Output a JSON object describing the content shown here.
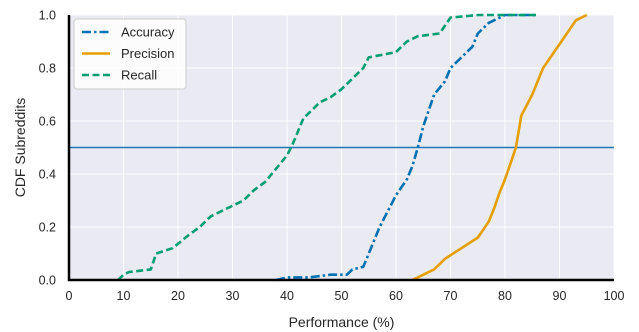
{
  "chart_data": {
    "type": "line",
    "title": "",
    "xlabel": "Performance (%)",
    "ylabel": "CDF Subreddits",
    "xlim": [
      0,
      100
    ],
    "ylim": [
      0,
      1
    ],
    "xticks": [
      "0",
      "10",
      "20",
      "30",
      "40",
      "50",
      "60",
      "70",
      "80",
      "90",
      "100"
    ],
    "yticks": [
      "0.0",
      "0.2",
      "0.4",
      "0.6",
      "0.8",
      "1.0"
    ],
    "grid": true,
    "background": "#eaeaf2",
    "legend_position": "top-left",
    "reference_line": {
      "y": 0.5,
      "color": "#1f77b4"
    },
    "series": [
      {
        "name": "Accuracy",
        "color": "#0072b2",
        "style": "dashdot",
        "points": [
          [
            38,
            0.0
          ],
          [
            40,
            0.01
          ],
          [
            44,
            0.01
          ],
          [
            48,
            0.02
          ],
          [
            51,
            0.02
          ],
          [
            52,
            0.04
          ],
          [
            54,
            0.05
          ],
          [
            55,
            0.1
          ],
          [
            56,
            0.15
          ],
          [
            57,
            0.2
          ],
          [
            58,
            0.24
          ],
          [
            59,
            0.28
          ],
          [
            60,
            0.32
          ],
          [
            61,
            0.35
          ],
          [
            62,
            0.38
          ],
          [
            63,
            0.43
          ],
          [
            64,
            0.5
          ],
          [
            65,
            0.58
          ],
          [
            66,
            0.64
          ],
          [
            67,
            0.7
          ],
          [
            69,
            0.75
          ],
          [
            70,
            0.8
          ],
          [
            72,
            0.84
          ],
          [
            74,
            0.88
          ],
          [
            75,
            0.93
          ],
          [
            77,
            0.97
          ],
          [
            80,
            1.0
          ],
          [
            86,
            1.0
          ]
        ]
      },
      {
        "name": "Precision",
        "color": "#e69f00",
        "style": "solid",
        "points": [
          [
            63,
            0.0
          ],
          [
            65,
            0.02
          ],
          [
            67,
            0.04
          ],
          [
            69,
            0.08
          ],
          [
            72,
            0.12
          ],
          [
            75,
            0.16
          ],
          [
            77,
            0.22
          ],
          [
            78,
            0.27
          ],
          [
            79,
            0.33
          ],
          [
            80,
            0.38
          ],
          [
            81,
            0.44
          ],
          [
            82,
            0.5
          ],
          [
            83,
            0.62
          ],
          [
            84,
            0.66
          ],
          [
            85,
            0.7
          ],
          [
            86,
            0.75
          ],
          [
            87,
            0.8
          ],
          [
            88,
            0.83
          ],
          [
            89,
            0.86
          ],
          [
            90,
            0.89
          ],
          [
            91,
            0.92
          ],
          [
            92,
            0.95
          ],
          [
            93,
            0.98
          ],
          [
            95,
            1.0
          ]
        ]
      },
      {
        "name": "Recall",
        "color": "#009e73",
        "style": "dashed",
        "points": [
          [
            9,
            0.0
          ],
          [
            10,
            0.02
          ],
          [
            11,
            0.03
          ],
          [
            15,
            0.04
          ],
          [
            16,
            0.1
          ],
          [
            19,
            0.12
          ],
          [
            22,
            0.17
          ],
          [
            24,
            0.2
          ],
          [
            26,
            0.24
          ],
          [
            29,
            0.27
          ],
          [
            32,
            0.3
          ],
          [
            34,
            0.34
          ],
          [
            36,
            0.37
          ],
          [
            38,
            0.42
          ],
          [
            40,
            0.47
          ],
          [
            41,
            0.51
          ],
          [
            42,
            0.56
          ],
          [
            43,
            0.61
          ],
          [
            45,
            0.65
          ],
          [
            46,
            0.67
          ],
          [
            48,
            0.69
          ],
          [
            50,
            0.72
          ],
          [
            52,
            0.76
          ],
          [
            54,
            0.8
          ],
          [
            55,
            0.84
          ],
          [
            60,
            0.86
          ],
          [
            62,
            0.9
          ],
          [
            64,
            0.92
          ],
          [
            68,
            0.93
          ],
          [
            69,
            0.96
          ],
          [
            70,
            0.99
          ],
          [
            75,
            1.0
          ],
          [
            86,
            1.0
          ]
        ]
      }
    ]
  }
}
